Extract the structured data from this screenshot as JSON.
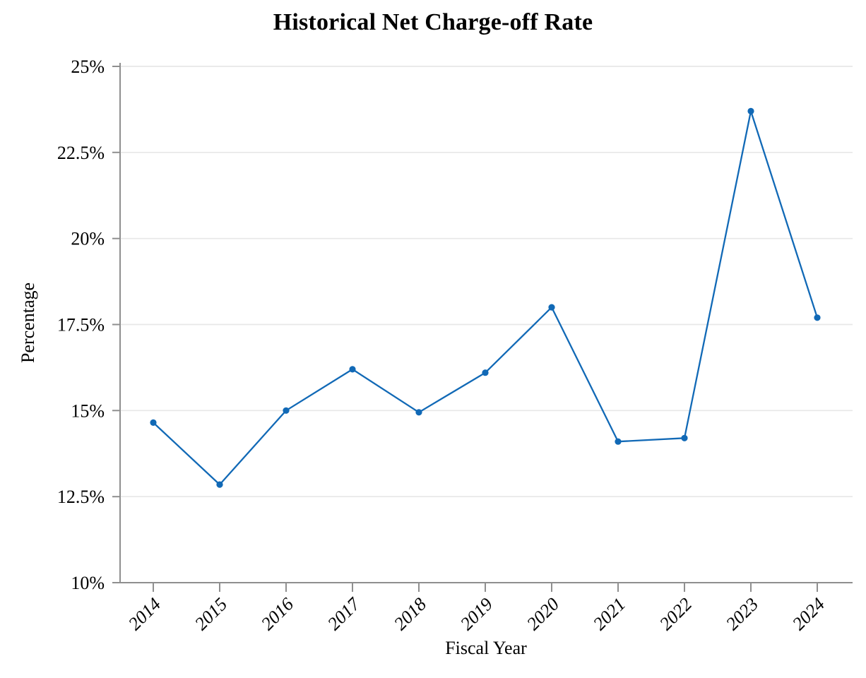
{
  "page": {
    "background": "#ffffff"
  },
  "chart_data": {
    "type": "line",
    "title": "Historical Net Charge-off Rate",
    "xlabel": "Fiscal Year",
    "ylabel": "Percentage",
    "categories": [
      "2014",
      "2015",
      "2016",
      "2017",
      "2018",
      "2019",
      "2020",
      "2021",
      "2022",
      "2023",
      "2024"
    ],
    "series": [
      {
        "name": "Net charge-off rate",
        "values": [
          14.65,
          12.85,
          15.0,
          16.2,
          14.95,
          16.1,
          18.0,
          14.1,
          14.2,
          23.7,
          17.7
        ]
      }
    ],
    "values": [
      14.65,
      12.85,
      15.0,
      16.2,
      14.95,
      16.1,
      18.0,
      14.1,
      14.2,
      23.7,
      17.7
    ],
    "ylim": [
      10,
      25
    ],
    "y_ticks": [
      10,
      12.5,
      15,
      17.5,
      20,
      22.5,
      25
    ],
    "y_tick_labels": [
      "10%",
      "12.5%",
      "15%",
      "17.5%",
      "20%",
      "22.5%",
      "25%"
    ],
    "x_tick_rotation_deg": -45,
    "grid": "horizontal",
    "legend": "none",
    "line_color": "#1169b6",
    "marker": "circle"
  },
  "style": {
    "grid_color": "#e7e7e7",
    "axis_color": "#8f8f8f",
    "text_color": "#000000"
  }
}
